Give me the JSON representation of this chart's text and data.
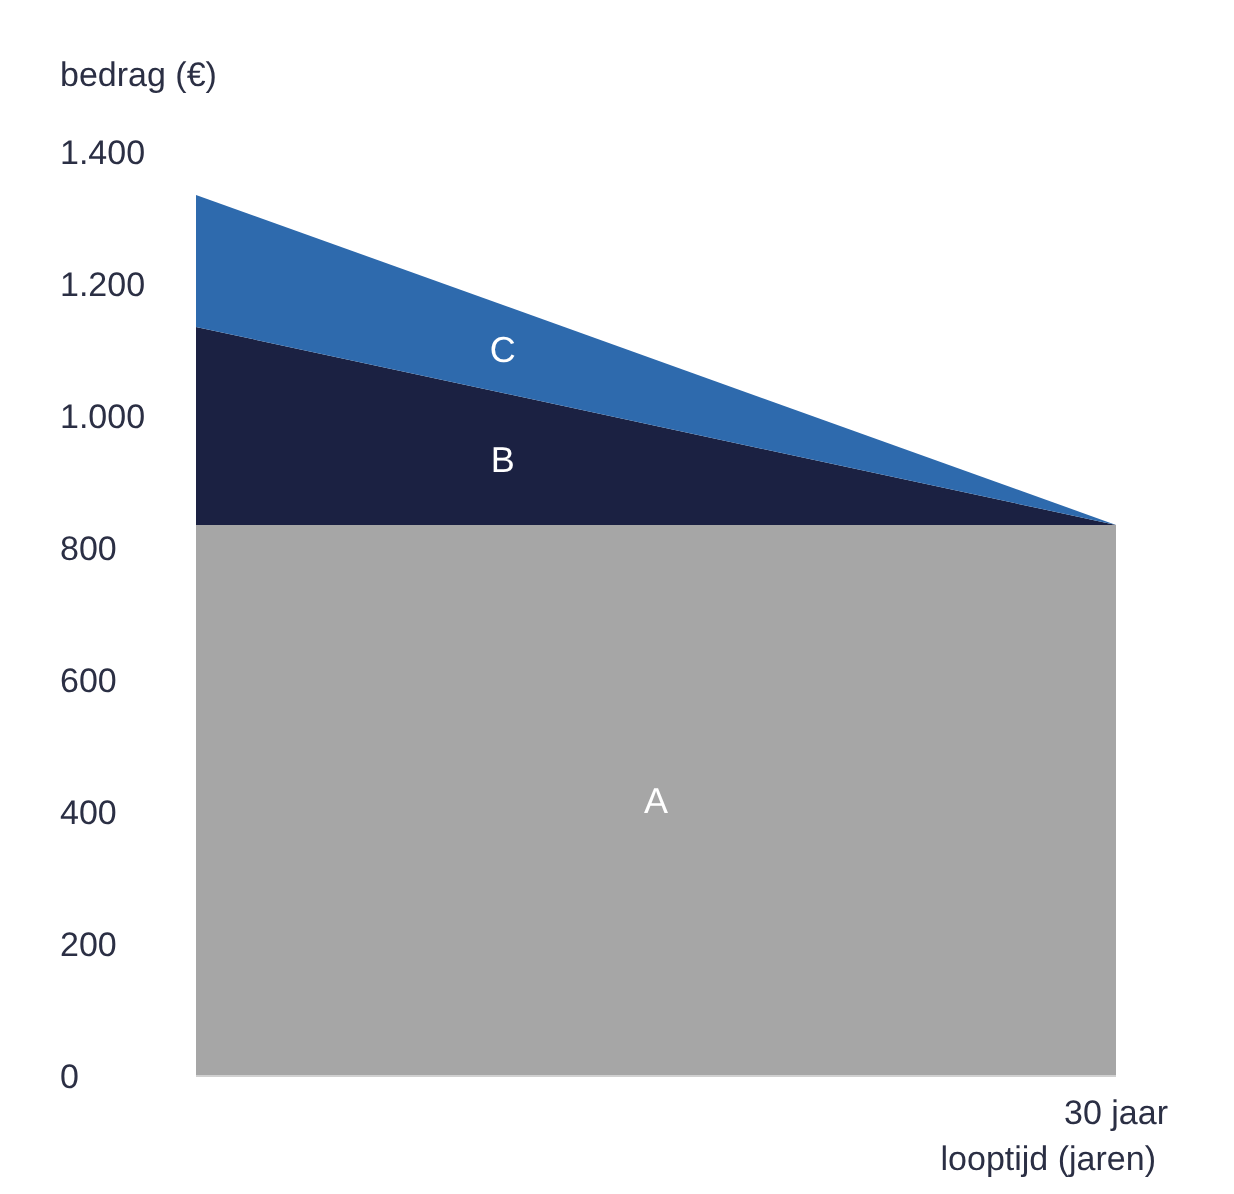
{
  "chart_data": {
    "type": "area",
    "stacked": true,
    "ylabel": "bedrag (€)",
    "xlabel": "looptijd (jaren)",
    "categories": [
      null,
      "30 jaar"
    ],
    "series": [
      {
        "name": "A",
        "color": "#a6a6a6",
        "values": [
          835,
          835
        ]
      },
      {
        "name": "B",
        "color": "#1b2142",
        "values": [
          300,
          0
        ]
      },
      {
        "name": "C",
        "color": "#2e6aad",
        "values": [
          200,
          0
        ]
      }
    ],
    "ylim": [
      0,
      1400
    ],
    "yticks": [
      0,
      200,
      400,
      600,
      800,
      {
        "value": 1000,
        "label": "1.000"
      },
      {
        "value": 1200,
        "label": "1.200"
      },
      {
        "value": 1400,
        "label": "1.400"
      }
    ],
    "grid": false,
    "legend": false
  }
}
